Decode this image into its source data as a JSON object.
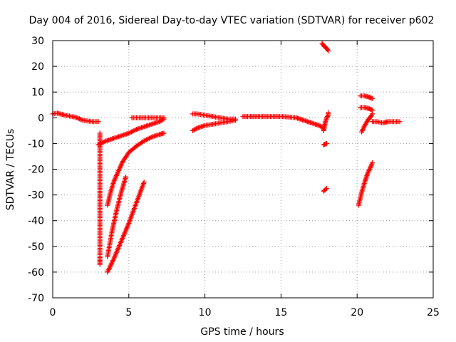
{
  "chart_data": {
    "type": "scatter",
    "title": "Day 004 of 2016, Sidereal Day-to-day VTEC variation (SDTVAR) for receiver p602",
    "xlabel": "GPS time / hours",
    "ylabel": "SDTVAR / TECUs",
    "xlim": [
      0,
      25
    ],
    "ylim": [
      -70,
      30
    ],
    "x_ticks": [
      0,
      5,
      10,
      15,
      20,
      25
    ],
    "y_ticks": [
      -70,
      -60,
      -50,
      -40,
      -30,
      -20,
      -10,
      0,
      10,
      20,
      30
    ],
    "grid": true,
    "grid_style": "dotted",
    "series_color": "#ff0000",
    "marker": "+",
    "segments": [
      {
        "x": [
          0.0,
          0.3,
          0.8,
          1.5,
          2.0,
          2.6,
          3.0
        ],
        "y": [
          1.5,
          1.8,
          1.0,
          0.2,
          -1.0,
          -1.5,
          -1.5
        ]
      },
      {
        "x": [
          3.0,
          3.5,
          4.0,
          4.5,
          5.0,
          5.5,
          6.0,
          6.5,
          7.0,
          7.3
        ],
        "y": [
          -10.5,
          -9.0,
          -8.0,
          -7.0,
          -6.0,
          -4.5,
          -3.5,
          -2.5,
          -1.5,
          -0.5
        ]
      },
      {
        "x": [
          5.2,
          5.6,
          6.0,
          6.5,
          7.0,
          7.3
        ],
        "y": [
          0.0,
          0.0,
          0.0,
          0.0,
          0.0,
          0.0
        ]
      },
      {
        "x": [
          3.6,
          3.8,
          4.0,
          4.3,
          4.6,
          5.0,
          5.5,
          6.0,
          6.5,
          7.0,
          7.3
        ],
        "y": [
          -34.0,
          -29.0,
          -25.0,
          -21.0,
          -17.0,
          -13.5,
          -11.0,
          -9.0,
          -7.5,
          -6.5,
          -6.0
        ]
      },
      {
        "x": [
          3.6,
          3.9,
          4.2,
          4.5,
          4.8
        ],
        "y": [
          -54.0,
          -44.0,
          -36.0,
          -29.0,
          -23.0
        ]
      },
      {
        "x": [
          3.6,
          4.0,
          4.5,
          5.0,
          5.5,
          6.0
        ],
        "y": [
          -60.0,
          -55.0,
          -48.0,
          -41.0,
          -33.0,
          -25.0
        ]
      },
      {
        "x": [
          3.1,
          3.1,
          3.1,
          3.1,
          3.1
        ],
        "y": [
          -6.0,
          -10.0,
          -28.0,
          -55.0,
          -57.0
        ]
      },
      {
        "x": [
          9.2,
          9.5,
          10.0,
          10.5,
          11.0,
          11.5,
          12.0
        ],
        "y": [
          -5.0,
          -4.0,
          -3.0,
          -2.5,
          -2.0,
          -1.5,
          -1.0
        ]
      },
      {
        "x": [
          9.2,
          9.5,
          10.0,
          10.5,
          11.0,
          11.5,
          12.0
        ],
        "y": [
          1.5,
          1.5,
          1.0,
          0.5,
          0.0,
          -0.5,
          -0.5
        ]
      },
      {
        "x": [
          12.5,
          13.0,
          14.0,
          15.0,
          15.5,
          16.0,
          16.5,
          17.0,
          17.5,
          17.8
        ],
        "y": [
          0.5,
          0.5,
          0.5,
          0.5,
          0.3,
          0.0,
          -1.0,
          -2.0,
          -3.0,
          -4.0
        ]
      },
      {
        "x": [
          17.8,
          17.9,
          18.0,
          18.1,
          18.1
        ],
        "y": [
          -5.0,
          -2.0,
          0.0,
          1.0,
          2.0
        ]
      },
      {
        "x": [
          17.7,
          17.8,
          17.9,
          18.0,
          18.1
        ],
        "y": [
          29.0,
          28.0,
          27.5,
          27.0,
          26.0
        ]
      },
      {
        "x": [
          17.8,
          18.0
        ],
        "y": [
          -10.5,
          -10.0
        ]
      },
      {
        "x": [
          17.8,
          18.0
        ],
        "y": [
          -28.5,
          -27.5
        ]
      },
      {
        "x": [
          20.1,
          20.3,
          20.5,
          20.7,
          20.9,
          21.0
        ],
        "y": [
          -34.0,
          -29.0,
          -25.0,
          -21.5,
          -19.0,
          -17.5
        ]
      },
      {
        "x": [
          20.2,
          20.5,
          20.8,
          21.0
        ],
        "y": [
          8.5,
          8.5,
          8.0,
          7.5
        ]
      },
      {
        "x": [
          20.2,
          20.5,
          20.8,
          21.0
        ],
        "y": [
          4.0,
          4.0,
          3.5,
          3.0
        ]
      },
      {
        "x": [
          20.3,
          20.5,
          20.7,
          20.9,
          21.0
        ],
        "y": [
          -5.5,
          -3.0,
          -1.0,
          0.5,
          1.5
        ]
      },
      {
        "x": [
          21.0,
          21.3,
          21.7,
          22.0,
          22.5,
          22.8
        ],
        "y": [
          -1.5,
          -1.5,
          -2.0,
          -1.5,
          -1.5,
          -1.5
        ]
      }
    ]
  }
}
